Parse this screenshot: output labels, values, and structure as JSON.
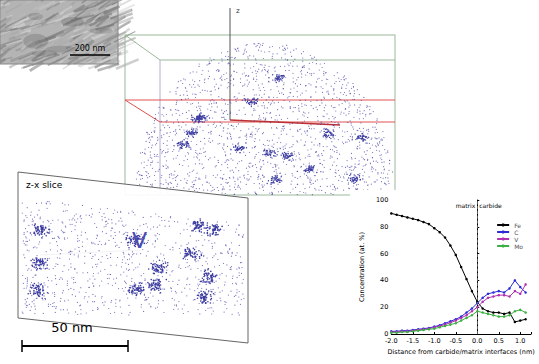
{
  "panels": {
    "micrograph": {
      "scale_bar": "200 nm"
    },
    "reconstruction": {
      "element": "V",
      "axis_label": "z",
      "slice_label": "z-x slice",
      "scale_bar": "50 nm"
    }
  },
  "chart_data": {
    "type": "line",
    "x_label": "Distance from carbide/matrix interfaces (nm)",
    "y_label": "Concentration (at. %)",
    "x": [
      -2.0,
      -1.875,
      -1.75,
      -1.625,
      -1.5,
      -1.375,
      -1.25,
      -1.125,
      -1.0,
      -0.875,
      -0.75,
      -0.625,
      -0.5,
      -0.375,
      -0.25,
      -0.125,
      0,
      0.125,
      0.25,
      0.375,
      0.5,
      0.625,
      0.75,
      0.875,
      1.0,
      1.125
    ],
    "series": [
      {
        "name": "Fe",
        "color": "#000000",
        "values": [
          90,
          89,
          88,
          87,
          86,
          85,
          83.5,
          82,
          79,
          76,
          72,
          66,
          59,
          50,
          41,
          32,
          24,
          19,
          17,
          16,
          16,
          15,
          16,
          9,
          10,
          11
        ]
      },
      {
        "name": "C",
        "color": "#2a2ad8",
        "values": [
          2,
          2,
          2.5,
          2.5,
          3,
          3.5,
          4,
          4.5,
          5.5,
          6.5,
          8,
          9.5,
          11,
          13,
          16,
          19,
          23,
          27,
          30,
          31,
          32,
          31,
          34,
          40,
          35,
          31
        ]
      },
      {
        "name": "V",
        "color": "#b030b0",
        "values": [
          1.5,
          1.5,
          2,
          2,
          2.5,
          3,
          3.5,
          4,
          5,
          6,
          7,
          8.5,
          10,
          12,
          14,
          17,
          20,
          24,
          27,
          28,
          29,
          29,
          28,
          32,
          30,
          37
        ]
      },
      {
        "name": "Mo",
        "color": "#3cb043",
        "values": [
          1,
          1,
          1.5,
          1.5,
          2,
          2.5,
          3,
          3.5,
          4,
          5,
          6,
          7,
          8,
          10,
          12,
          14,
          17,
          16,
          15,
          14,
          13,
          13,
          14,
          17,
          18,
          16
        ]
      }
    ],
    "xlim": [
      -2.0,
      1.25
    ],
    "ylim": [
      0,
      100
    ],
    "xticks": [
      {
        "value": -2.0,
        "label": "-2.0"
      },
      -1.5,
      {
        "value": -1.0,
        "label": "-1.0"
      },
      -0.5,
      {
        "value": 0,
        "label": "0.0"
      },
      0.5,
      {
        "value": 1.0,
        "label": "1.0"
      }
    ],
    "yticks": [
      0,
      20,
      40,
      60,
      80,
      100
    ],
    "annotations": [
      {
        "x": 0,
        "text": "matrix",
        "side": "left"
      },
      {
        "x": 0,
        "text": "carbide",
        "side": "right"
      }
    ],
    "legend": "upper right",
    "marker": "circle",
    "grid": false
  }
}
